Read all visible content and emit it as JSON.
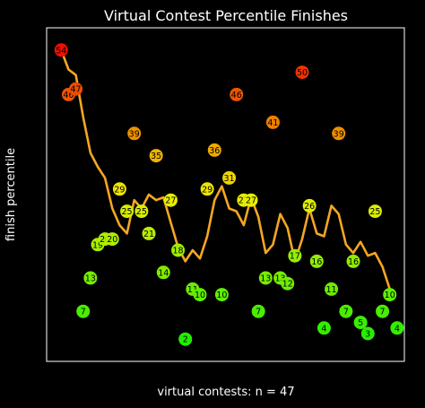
{
  "chart_data": {
    "type": "scatter",
    "title": "Virtual Contest Percentile Finishes",
    "xlabel": "virtual contests: n = 47",
    "ylabel": "finish percentile",
    "xlim": [
      -1,
      48
    ],
    "ylim": [
      -2,
      58
    ],
    "grid": false,
    "legend": "none",
    "points": [
      {
        "x": 1,
        "y": 54
      },
      {
        "x": 2,
        "y": 46
      },
      {
        "x": 3,
        "y": 47
      },
      {
        "x": 4,
        "y": 7
      },
      {
        "x": 5,
        "y": 13
      },
      {
        "x": 6,
        "y": 19
      },
      {
        "x": 7,
        "y": 20
      },
      {
        "x": 8,
        "y": 20
      },
      {
        "x": 9,
        "y": 29
      },
      {
        "x": 10,
        "y": 25
      },
      {
        "x": 11,
        "y": 39
      },
      {
        "x": 12,
        "y": 25
      },
      {
        "x": 13,
        "y": 21
      },
      {
        "x": 14,
        "y": 35
      },
      {
        "x": 15,
        "y": 14
      },
      {
        "x": 16,
        "y": 27
      },
      {
        "x": 17,
        "y": 18
      },
      {
        "x": 18,
        "y": 2
      },
      {
        "x": 19,
        "y": 11
      },
      {
        "x": 20,
        "y": 10
      },
      {
        "x": 21,
        "y": 29
      },
      {
        "x": 22,
        "y": 36
      },
      {
        "x": 23,
        "y": 10
      },
      {
        "x": 24,
        "y": 31
      },
      {
        "x": 25,
        "y": 46
      },
      {
        "x": 26,
        "y": 27
      },
      {
        "x": 27,
        "y": 27
      },
      {
        "x": 28,
        "y": 7
      },
      {
        "x": 29,
        "y": 13
      },
      {
        "x": 30,
        "y": 41
      },
      {
        "x": 31,
        "y": 13
      },
      {
        "x": 32,
        "y": 12
      },
      {
        "x": 33,
        "y": 17
      },
      {
        "x": 34,
        "y": 50
      },
      {
        "x": 35,
        "y": 26
      },
      {
        "x": 36,
        "y": 16
      },
      {
        "x": 37,
        "y": 4
      },
      {
        "x": 38,
        "y": 11
      },
      {
        "x": 39,
        "y": 39
      },
      {
        "x": 40,
        "y": 7
      },
      {
        "x": 41,
        "y": 16
      },
      {
        "x": 42,
        "y": 5
      },
      {
        "x": 43,
        "y": 3
      },
      {
        "x": 44,
        "y": 25
      },
      {
        "x": 45,
        "y": 7
      },
      {
        "x": 46,
        "y": 10
      },
      {
        "x": 47,
        "y": 4
      }
    ],
    "trend_line": {
      "color": "#f5a623",
      "x": [
        1,
        2,
        3,
        4,
        5,
        6,
        7,
        8,
        9,
        10,
        11,
        12,
        13,
        14,
        15,
        16,
        17,
        18,
        19,
        20,
        21,
        22,
        23,
        24,
        25,
        26,
        27,
        28,
        29,
        30,
        31,
        32,
        33,
        34,
        35,
        36,
        37,
        38,
        39,
        40,
        41,
        42,
        43,
        44,
        45,
        46
      ],
      "y": [
        54,
        50.5,
        49.5,
        42,
        35.5,
        33,
        31,
        25.5,
        22.5,
        21,
        27,
        25.5,
        28,
        27,
        27.5,
        23,
        18.5,
        16,
        18,
        16.5,
        20.5,
        27,
        29.5,
        25.5,
        25,
        22.5,
        27.5,
        24,
        17.5,
        19,
        24.5,
        22,
        16,
        20,
        25.5,
        21,
        20.5,
        26,
        24.5,
        19,
        17.5,
        19.5,
        17,
        17.5,
        15,
        11
      ]
    },
    "colors": {
      "low": "#22ee00",
      "mid": "#eeee00",
      "high": "#ee1100",
      "background": "#000000",
      "frame": "#ffffff",
      "text": "#ffffff"
    }
  }
}
